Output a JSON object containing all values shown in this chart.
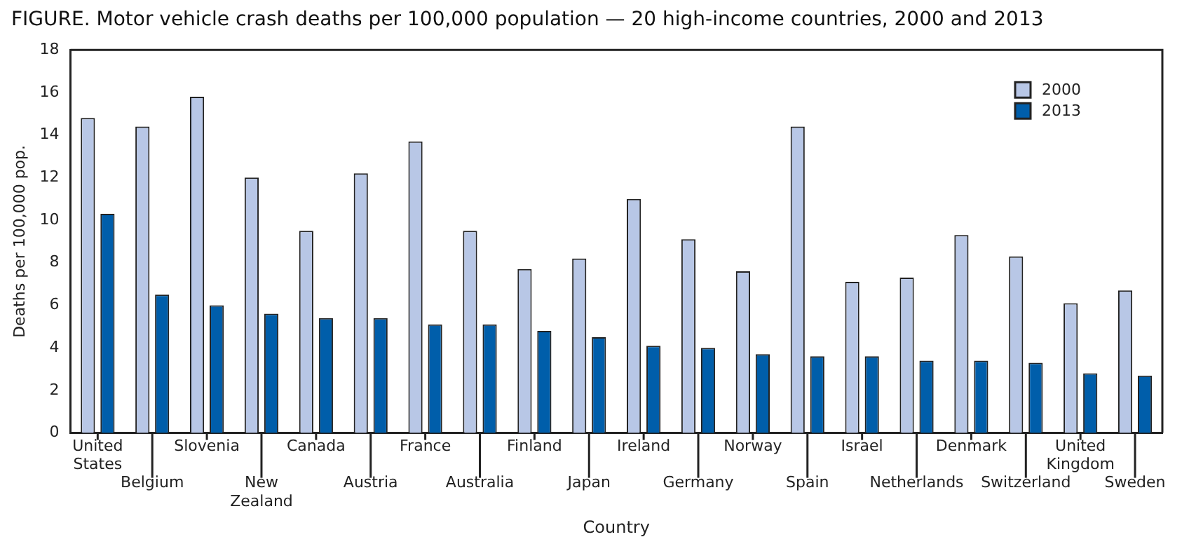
{
  "chart_data": {
    "type": "bar",
    "title": "FIGURE. Motor vehicle crash deaths per 100,000 population — 20 high-income countries, 2000 and 2013",
    "xlabel": "Country",
    "ylabel": "Deaths per 100,000 pop.",
    "categories": [
      "United States",
      "Belgium",
      "Slovenia",
      "New Zealand",
      "Canada",
      "Austria",
      "France",
      "Australia",
      "Finland",
      "Japan",
      "Ireland",
      "Germany",
      "Norway",
      "Spain",
      "Israel",
      "Netherlands",
      "Denmark",
      "Switzerland",
      "United Kingdom",
      "Sweden"
    ],
    "series": [
      {
        "name": "2000",
        "color": "#b8c7e6",
        "values": [
          14.8,
          14.4,
          15.8,
          12.0,
          9.5,
          12.2,
          13.7,
          9.5,
          7.7,
          8.2,
          11.0,
          9.1,
          7.6,
          14.4,
          7.1,
          7.3,
          9.3,
          8.3,
          6.1,
          6.7
        ]
      },
      {
        "name": "2013",
        "color": "#005eaa",
        "values": [
          10.3,
          6.5,
          6.0,
          5.6,
          5.4,
          5.4,
          5.1,
          5.1,
          4.8,
          4.5,
          4.1,
          4.0,
          3.7,
          3.6,
          3.6,
          3.4,
          3.4,
          3.3,
          2.8,
          2.7
        ]
      }
    ],
    "ylim": [
      0,
      18
    ],
    "yticks": [
      0,
      2,
      4,
      6,
      8,
      10,
      12,
      14,
      16,
      18
    ],
    "grid": false,
    "legend": "top right"
  }
}
